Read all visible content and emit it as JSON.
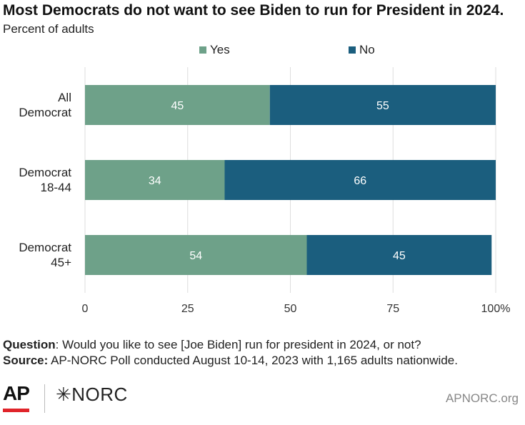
{
  "title": "Most Democrats do not want to see Biden to run for President in 2024.",
  "subtitle": "Percent of adults",
  "colors": {
    "yes": "#6ea189",
    "no": "#1b5e7e",
    "grid": "#dddddd",
    "axis_text": "#333333"
  },
  "chart_data": {
    "type": "bar",
    "orientation": "horizontal",
    "stacked": true,
    "categories": [
      [
        "All",
        "Democrat"
      ],
      [
        "Democrat",
        "18-44"
      ],
      [
        "Democrat",
        "45+"
      ]
    ],
    "series": [
      {
        "name": "Yes",
        "values": [
          45,
          34,
          54
        ]
      },
      {
        "name": "No",
        "values": [
          55,
          66,
          45
        ]
      }
    ],
    "xlim": [
      0,
      100
    ],
    "x_ticks": [
      "0",
      "25",
      "50",
      "75",
      "100%"
    ],
    "legend_position": "top",
    "grid": true
  },
  "footer": {
    "question_label": "Question",
    "question_text": ": Would you like to see [Joe Biden] run for president in 2024, or not?",
    "source_label": "Source:",
    "source_text": " AP-NORC Poll conducted August 10-14, 2023 with 1,165 adults nationwide."
  },
  "logos": {
    "ap": "AP",
    "norc": "✳NORC"
  },
  "site": "APNORC.org"
}
